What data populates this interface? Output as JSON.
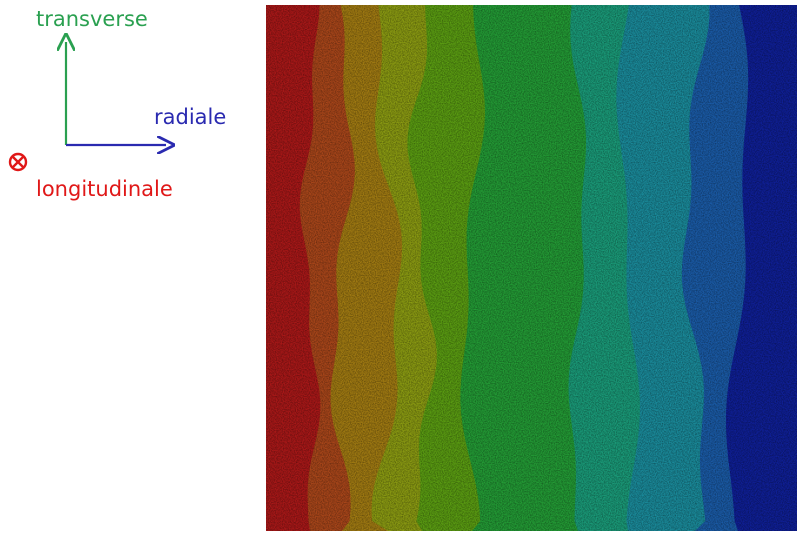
{
  "labels": {
    "transverse": "transverse",
    "radiale": "radiale",
    "longitudinale": "longitudinale"
  }
}
